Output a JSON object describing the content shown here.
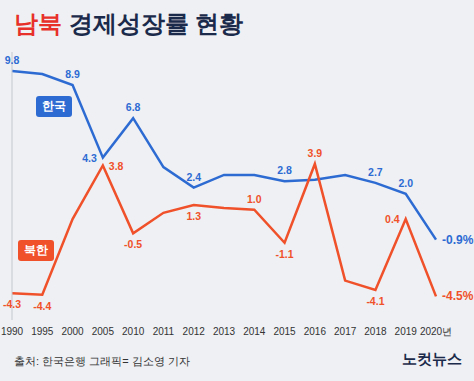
{
  "chart_data": {
    "type": "line",
    "title": "남북 경제성장률 현황",
    "categories": [
      "1990",
      "1995",
      "2000",
      "2005",
      "2010",
      "2011",
      "2012",
      "2013",
      "2014",
      "2015",
      "2016",
      "2017",
      "2018",
      "2019",
      "2020년"
    ],
    "series": [
      {
        "name": "한국",
        "color": "#2d6bd3",
        "values": [
          9.8,
          9.6,
          8.9,
          4.3,
          6.8,
          3.7,
          2.4,
          3.2,
          3.2,
          2.8,
          2.9,
          3.2,
          2.7,
          2.0,
          -0.9
        ],
        "value_labels": [
          "9.8",
          null,
          "8.9",
          "4.3",
          "6.8",
          null,
          "2.4",
          null,
          null,
          "2.8",
          null,
          null,
          "2.7",
          "2.0",
          "-0.9%"
        ]
      },
      {
        "name": "북한",
        "color": "#f0502a",
        "values": [
          -4.3,
          -4.4,
          0.4,
          3.8,
          -0.5,
          0.8,
          1.3,
          1.1,
          1.0,
          -1.1,
          3.9,
          -3.5,
          -4.1,
          0.4,
          -4.5
        ],
        "value_labels": [
          "-4.3",
          "-4.4",
          null,
          "3.8",
          "-0.5",
          null,
          "1.3",
          null,
          "1.0",
          "-1.1",
          "3.9",
          null,
          "-4.1",
          "0.4",
          "-4.5%"
        ]
      }
    ],
    "ylim": [
      -6,
      11
    ],
    "tick_labels": "x",
    "grid": false,
    "data_labels": true,
    "marker": "none",
    "source": "출처: 한국은행",
    "credit": "그래픽= 김소영 기자",
    "publisher": "노컷뉴스"
  }
}
